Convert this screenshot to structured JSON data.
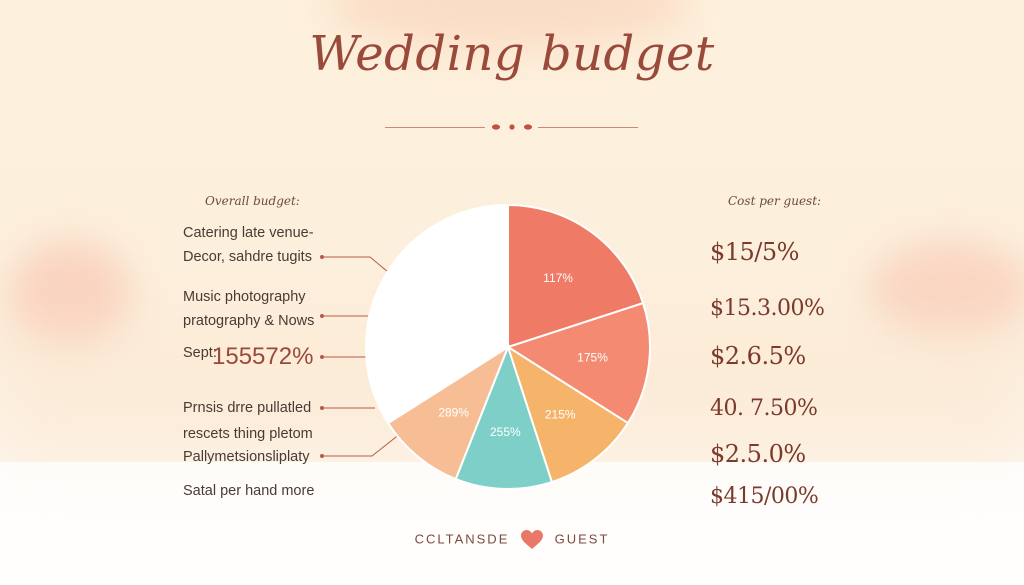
{
  "title": "Wedding budget",
  "overall_label": "Overall budget:",
  "cost_label": "Cost per guest:",
  "left_items": [
    "Catering late venue-",
    "Decor, sahdre tugits",
    "Music photography",
    "pratography & Nows",
    "Sept:",
    "Prnsis drre pullatled",
    "rescets thing pletom",
    "Pallymetsionsliplaty",
    "Satal per hand more"
  ],
  "left_big_value": "155572%",
  "right_values": [
    "$15/5%",
    "$15.3.00%",
    "$2.6.5%",
    "40. 7.50%",
    "$2.5.0%",
    "$415/00%"
  ],
  "footer": {
    "left": "CCLTANSDE",
    "right": "GUEST",
    "heart_icon": "heart-icon"
  },
  "colors": {
    "title": "#9a4a3a",
    "accent": "#e9786a"
  },
  "chart_data": {
    "type": "pie",
    "slice_labels": [
      "117%",
      "175%",
      "215%",
      "255%",
      "289%",
      ""
    ],
    "values": [
      20,
      14,
      11,
      11,
      10,
      34
    ],
    "colors": [
      "#ef7a66",
      "#f48a72",
      "#f6b46a",
      "#7ecfc7",
      "#f7bd95",
      "#ffffff"
    ]
  }
}
